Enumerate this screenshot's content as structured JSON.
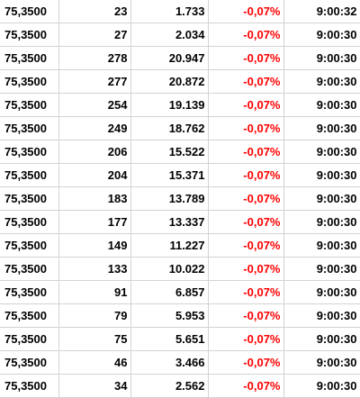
{
  "trades": {
    "rows": [
      {
        "price": "75,3500",
        "qty": "23",
        "volume": "1.733",
        "change": "-0,07%",
        "time": "9:00:32"
      },
      {
        "price": "75,3500",
        "qty": "27",
        "volume": "2.034",
        "change": "-0,07%",
        "time": "9:00:30"
      },
      {
        "price": "75,3500",
        "qty": "278",
        "volume": "20.947",
        "change": "-0,07%",
        "time": "9:00:30"
      },
      {
        "price": "75,3500",
        "qty": "277",
        "volume": "20.872",
        "change": "-0,07%",
        "time": "9:00:30"
      },
      {
        "price": "75,3500",
        "qty": "254",
        "volume": "19.139",
        "change": "-0,07%",
        "time": "9:00:30"
      },
      {
        "price": "75,3500",
        "qty": "249",
        "volume": "18.762",
        "change": "-0,07%",
        "time": "9:00:30"
      },
      {
        "price": "75,3500",
        "qty": "206",
        "volume": "15.522",
        "change": "-0,07%",
        "time": "9:00:30"
      },
      {
        "price": "75,3500",
        "qty": "204",
        "volume": "15.371",
        "change": "-0,07%",
        "time": "9:00:30"
      },
      {
        "price": "75,3500",
        "qty": "183",
        "volume": "13.789",
        "change": "-0,07%",
        "time": "9:00:30"
      },
      {
        "price": "75,3500",
        "qty": "177",
        "volume": "13.337",
        "change": "-0,07%",
        "time": "9:00:30"
      },
      {
        "price": "75,3500",
        "qty": "149",
        "volume": "11.227",
        "change": "-0,07%",
        "time": "9:00:30"
      },
      {
        "price": "75,3500",
        "qty": "133",
        "volume": "10.022",
        "change": "-0,07%",
        "time": "9:00:30"
      },
      {
        "price": "75,3500",
        "qty": "91",
        "volume": "6.857",
        "change": "-0,07%",
        "time": "9:00:30"
      },
      {
        "price": "75,3500",
        "qty": "79",
        "volume": "5.953",
        "change": "-0,07%",
        "time": "9:00:30"
      },
      {
        "price": "75,3500",
        "qty": "75",
        "volume": "5.651",
        "change": "-0,07%",
        "time": "9:00:30"
      },
      {
        "price": "75,3500",
        "qty": "46",
        "volume": "3.466",
        "change": "-0,07%",
        "time": "9:00:30"
      },
      {
        "price": "75,3500",
        "qty": "34",
        "volume": "2.562",
        "change": "-0,07%",
        "time": "9:00:30"
      }
    ]
  },
  "colors": {
    "text": "#000000",
    "negative_change": "#ff0000",
    "grid": "#d3d3d3",
    "background": "#ffffff"
  }
}
